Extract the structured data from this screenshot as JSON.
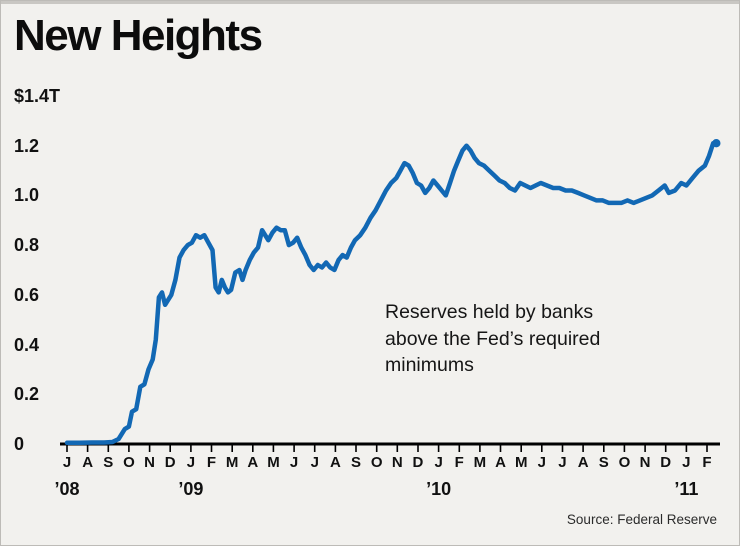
{
  "colors": {
    "line": "#1268b4",
    "axis": "#000000"
  },
  "chart_data": {
    "type": "line",
    "title": "New Heights",
    "annotation": "Reserves held by banks above the Fed’s required minimums",
    "annotation_lines": [
      "Reserves held by banks",
      "above the Fed’s required",
      "minimums"
    ],
    "source": "Source: Federal Reserve",
    "xlabel": "",
    "ylabel": "",
    "ylim": [
      0,
      1.4
    ],
    "grid": false,
    "legend": false,
    "y_ticks": [
      {
        "label": "0",
        "value": 0
      },
      {
        "label": "0.2",
        "value": 0.2
      },
      {
        "label": "0.4",
        "value": 0.4
      },
      {
        "label": "0.6",
        "value": 0.6
      },
      {
        "label": "0.8",
        "value": 0.8
      },
      {
        "label": "1.0",
        "value": 1.0
      },
      {
        "label": "1.2",
        "value": 1.2
      },
      {
        "label": "$1.4T",
        "value": 1.4
      }
    ],
    "x_month_labels": [
      "J",
      "A",
      "S",
      "O",
      "N",
      "D",
      "J",
      "F",
      "M",
      "A",
      "M",
      "J",
      "J",
      "A",
      "S",
      "O",
      "N",
      "D",
      "J",
      "F",
      "M",
      "A",
      "M",
      "J",
      "J",
      "A",
      "S",
      "O",
      "N",
      "D",
      "J",
      "F"
    ],
    "year_labels": [
      {
        "label": "’08",
        "month_index": 0
      },
      {
        "label": "’09",
        "month_index": 6
      },
      {
        "label": "’10",
        "month_index": 18
      },
      {
        "label": "’11",
        "month_index": 30
      }
    ],
    "series": [
      {
        "name": "Reserves held by banks above the Fed’s required minimums",
        "unit": "trillions of dollars",
        "x_unit": "months since Jul 2008",
        "points": [
          [
            0,
            0.005
          ],
          [
            0.6,
            0.005
          ],
          [
            1.2,
            0.006
          ],
          [
            1.8,
            0.006
          ],
          [
            2.2,
            0.008
          ],
          [
            2.5,
            0.02
          ],
          [
            2.8,
            0.06
          ],
          [
            3.0,
            0.07
          ],
          [
            3.15,
            0.13
          ],
          [
            3.35,
            0.14
          ],
          [
            3.55,
            0.23
          ],
          [
            3.75,
            0.24
          ],
          [
            3.95,
            0.3
          ],
          [
            4.15,
            0.34
          ],
          [
            4.3,
            0.42
          ],
          [
            4.45,
            0.59
          ],
          [
            4.6,
            0.61
          ],
          [
            4.75,
            0.56
          ],
          [
            4.9,
            0.58
          ],
          [
            5.05,
            0.6
          ],
          [
            5.25,
            0.66
          ],
          [
            5.45,
            0.75
          ],
          [
            5.65,
            0.78
          ],
          [
            5.85,
            0.8
          ],
          [
            6.05,
            0.81
          ],
          [
            6.25,
            0.84
          ],
          [
            6.45,
            0.83
          ],
          [
            6.65,
            0.84
          ],
          [
            6.85,
            0.81
          ],
          [
            7.05,
            0.78
          ],
          [
            7.2,
            0.63
          ],
          [
            7.35,
            0.61
          ],
          [
            7.5,
            0.66
          ],
          [
            7.65,
            0.63
          ],
          [
            7.8,
            0.61
          ],
          [
            7.95,
            0.62
          ],
          [
            8.15,
            0.69
          ],
          [
            8.35,
            0.7
          ],
          [
            8.5,
            0.66
          ],
          [
            8.65,
            0.7
          ],
          [
            8.85,
            0.74
          ],
          [
            9.05,
            0.77
          ],
          [
            9.25,
            0.79
          ],
          [
            9.45,
            0.86
          ],
          [
            9.6,
            0.84
          ],
          [
            9.75,
            0.82
          ],
          [
            9.95,
            0.85
          ],
          [
            10.15,
            0.87
          ],
          [
            10.35,
            0.86
          ],
          [
            10.55,
            0.86
          ],
          [
            10.75,
            0.8
          ],
          [
            10.95,
            0.81
          ],
          [
            11.15,
            0.83
          ],
          [
            11.35,
            0.79
          ],
          [
            11.55,
            0.76
          ],
          [
            11.75,
            0.72
          ],
          [
            11.95,
            0.7
          ],
          [
            12.15,
            0.72
          ],
          [
            12.35,
            0.71
          ],
          [
            12.55,
            0.73
          ],
          [
            12.75,
            0.71
          ],
          [
            12.95,
            0.7
          ],
          [
            13.15,
            0.74
          ],
          [
            13.35,
            0.76
          ],
          [
            13.55,
            0.75
          ],
          [
            13.75,
            0.79
          ],
          [
            13.95,
            0.82
          ],
          [
            14.2,
            0.84
          ],
          [
            14.45,
            0.87
          ],
          [
            14.7,
            0.91
          ],
          [
            14.95,
            0.94
          ],
          [
            15.2,
            0.98
          ],
          [
            15.45,
            1.02
          ],
          [
            15.7,
            1.05
          ],
          [
            15.95,
            1.07
          ],
          [
            16.15,
            1.1
          ],
          [
            16.35,
            1.13
          ],
          [
            16.55,
            1.12
          ],
          [
            16.75,
            1.09
          ],
          [
            16.95,
            1.05
          ],
          [
            17.15,
            1.04
          ],
          [
            17.35,
            1.01
          ],
          [
            17.55,
            1.03
          ],
          [
            17.75,
            1.06
          ],
          [
            17.95,
            1.04
          ],
          [
            18.15,
            1.02
          ],
          [
            18.35,
            1.0
          ],
          [
            18.55,
            1.05
          ],
          [
            18.75,
            1.1
          ],
          [
            18.95,
            1.14
          ],
          [
            19.15,
            1.18
          ],
          [
            19.35,
            1.2
          ],
          [
            19.55,
            1.18
          ],
          [
            19.75,
            1.15
          ],
          [
            19.95,
            1.13
          ],
          [
            20.2,
            1.12
          ],
          [
            20.45,
            1.1
          ],
          [
            20.7,
            1.08
          ],
          [
            20.95,
            1.06
          ],
          [
            21.2,
            1.05
          ],
          [
            21.45,
            1.03
          ],
          [
            21.7,
            1.02
          ],
          [
            21.95,
            1.05
          ],
          [
            22.2,
            1.04
          ],
          [
            22.45,
            1.03
          ],
          [
            22.7,
            1.04
          ],
          [
            22.95,
            1.05
          ],
          [
            23.25,
            1.04
          ],
          [
            23.55,
            1.03
          ],
          [
            23.85,
            1.03
          ],
          [
            24.15,
            1.02
          ],
          [
            24.45,
            1.02
          ],
          [
            24.75,
            1.01
          ],
          [
            25.05,
            1.0
          ],
          [
            25.35,
            0.99
          ],
          [
            25.65,
            0.98
          ],
          [
            25.95,
            0.98
          ],
          [
            26.25,
            0.97
          ],
          [
            26.55,
            0.97
          ],
          [
            26.85,
            0.97
          ],
          [
            27.15,
            0.98
          ],
          [
            27.45,
            0.97
          ],
          [
            27.75,
            0.98
          ],
          [
            28.05,
            0.99
          ],
          [
            28.35,
            1.0
          ],
          [
            28.65,
            1.02
          ],
          [
            28.95,
            1.04
          ],
          [
            29.15,
            1.01
          ],
          [
            29.45,
            1.02
          ],
          [
            29.75,
            1.05
          ],
          [
            30.0,
            1.04
          ],
          [
            30.3,
            1.07
          ],
          [
            30.6,
            1.1
          ],
          [
            30.9,
            1.12
          ],
          [
            31.1,
            1.16
          ],
          [
            31.3,
            1.21
          ],
          [
            31.45,
            1.21
          ]
        ]
      }
    ]
  }
}
